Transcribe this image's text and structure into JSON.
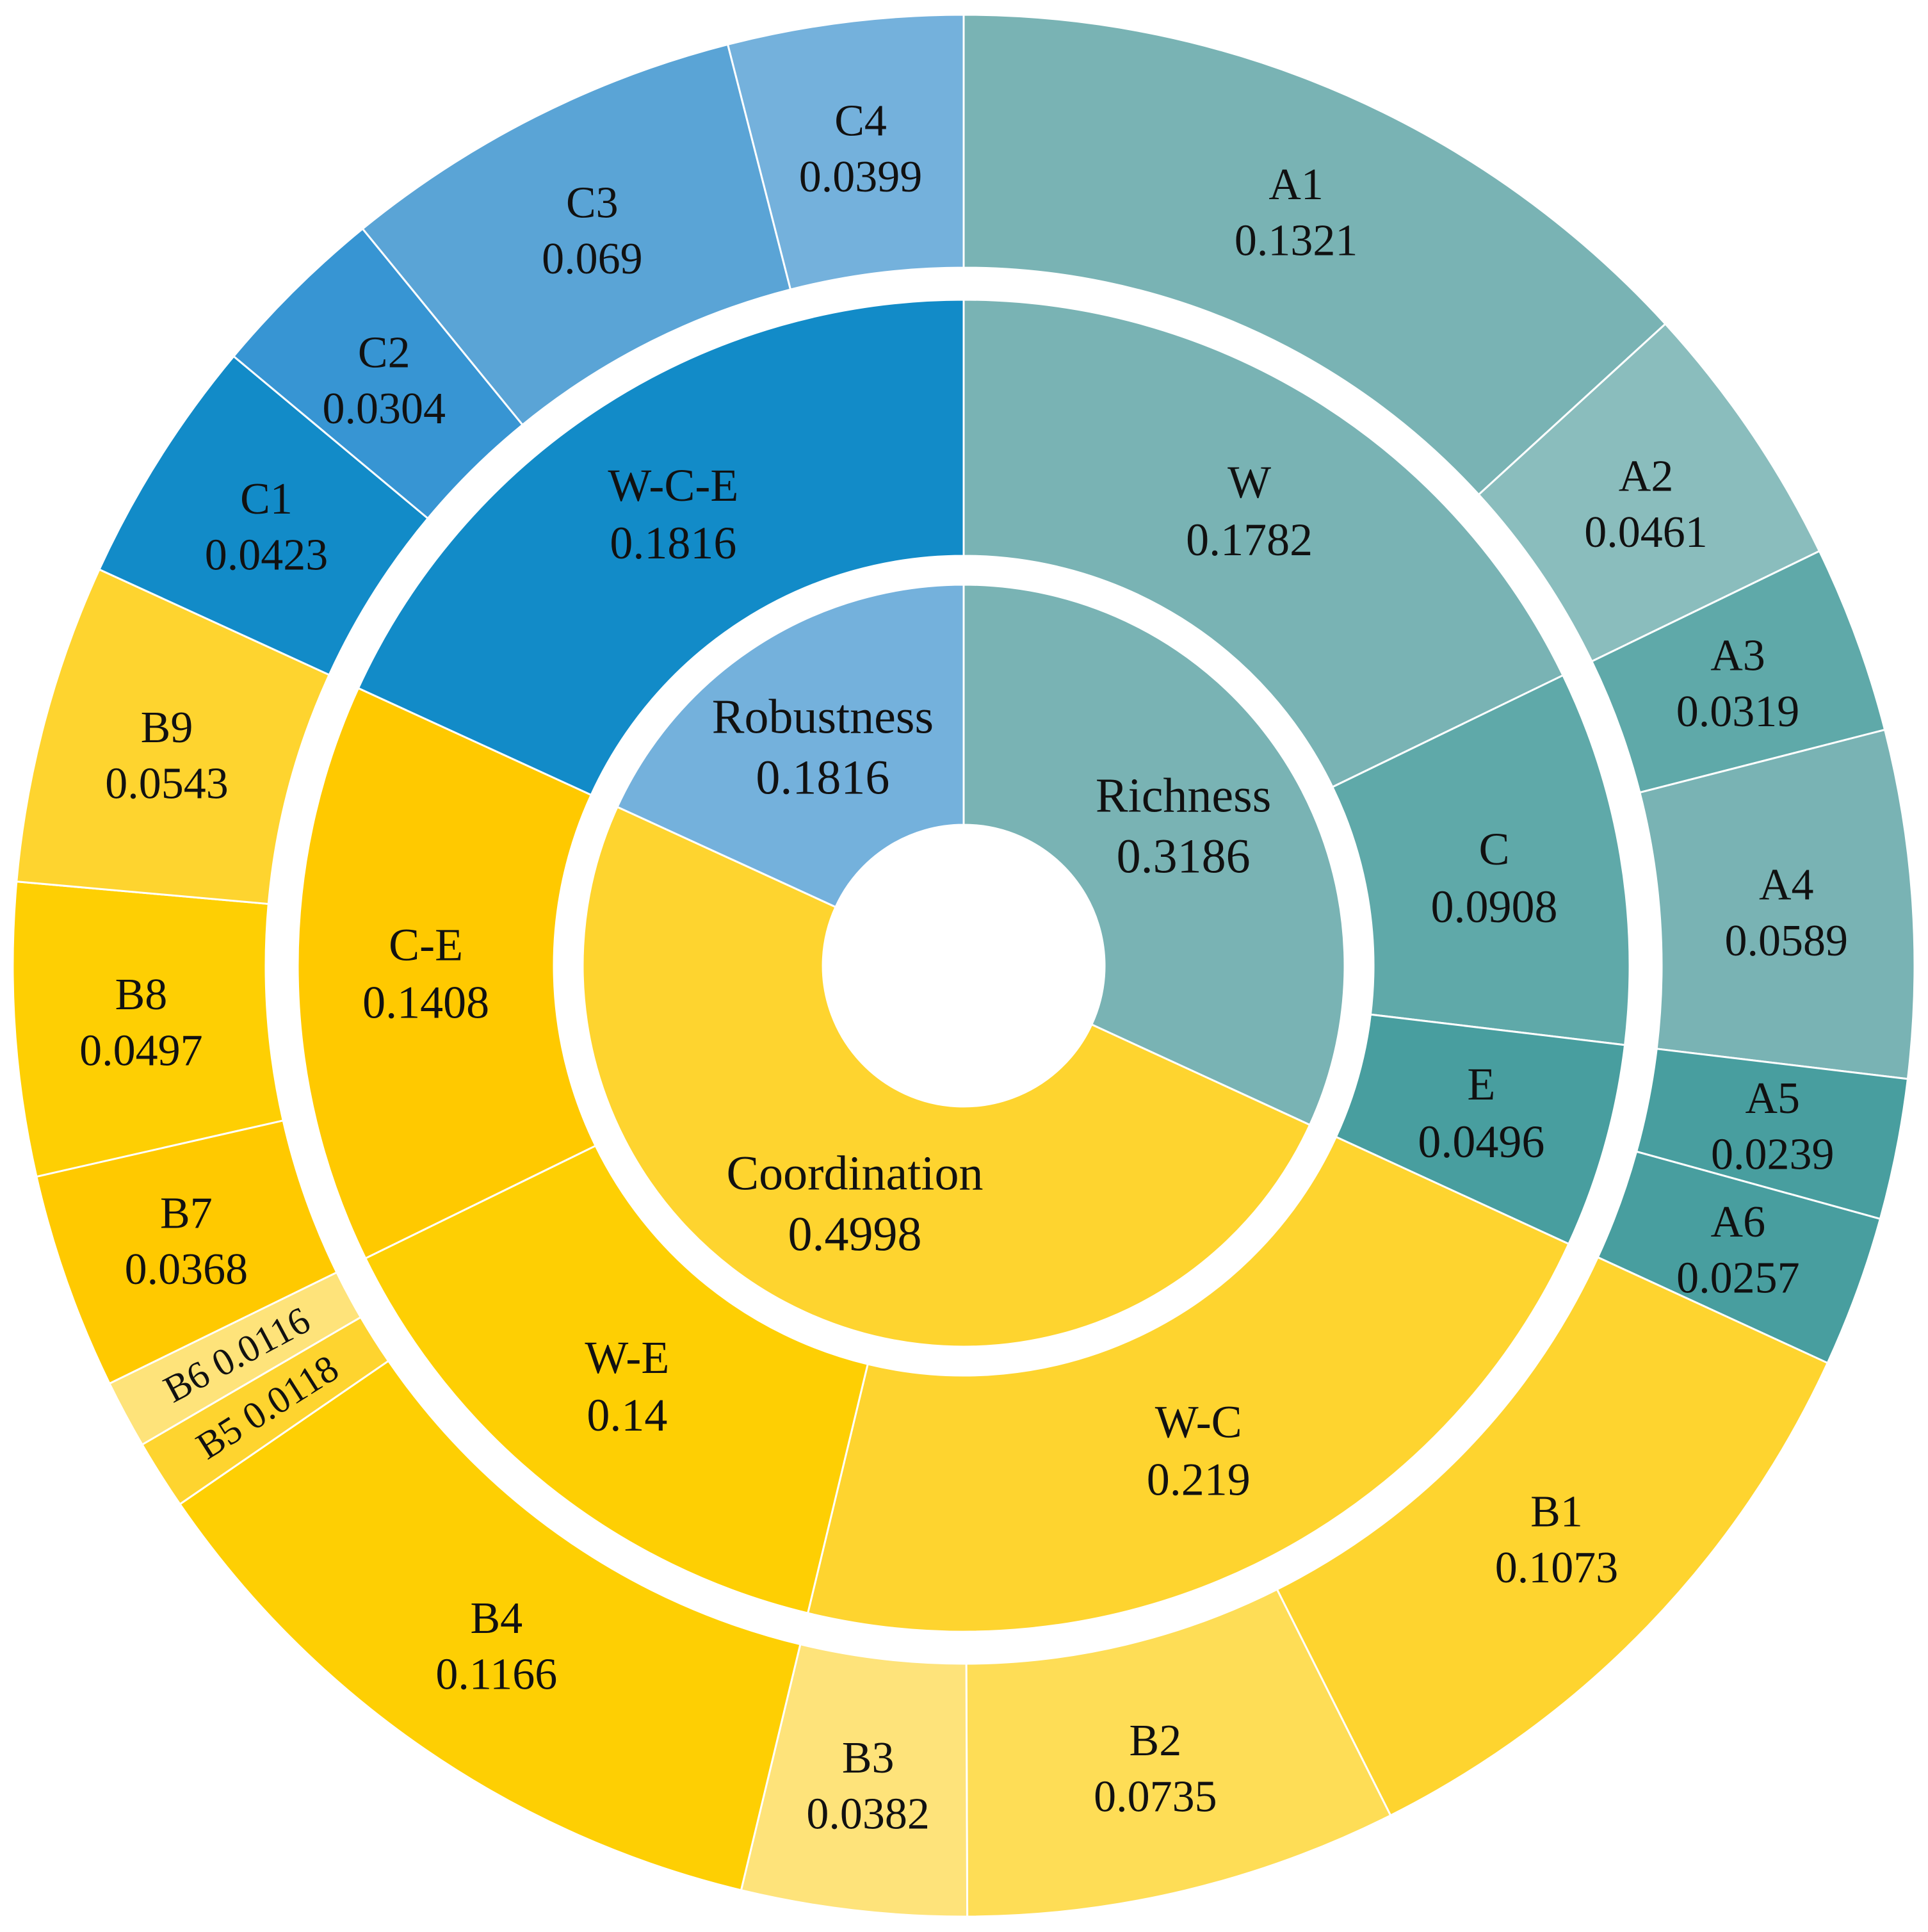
{
  "chart_data": {
    "type": "sunburst",
    "start_angle_deg": 0,
    "direction": "clockwise",
    "rings": [
      {
        "ring": "inner",
        "segments": [
          {
            "label": "Richness",
            "value": "0.3186",
            "color": "#79B3B4"
          },
          {
            "label": "Coordination",
            "value": "0.4998",
            "color": "#FED42F"
          },
          {
            "label": "Robustness",
            "value": "0.1816",
            "color": "#74B1DC"
          }
        ]
      },
      {
        "ring": "middle",
        "segments": [
          {
            "label": "W",
            "value": "0.1782",
            "color": "#79B3B4",
            "parent": "Richness"
          },
          {
            "label": "C",
            "value": "0.0908",
            "color": "#5FA9A9",
            "parent": "Richness"
          },
          {
            "label": "E",
            "value": "0.0496",
            "color": "#489E9F",
            "parent": "Richness"
          },
          {
            "label": "W-C",
            "value": "0.219",
            "color": "#FED42F",
            "parent": "Coordination"
          },
          {
            "label": "W-E",
            "value": "0.14",
            "color": "#FECF03",
            "parent": "Coordination"
          },
          {
            "label": "C-E",
            "value": "0.1408",
            "color": "#FFC900",
            "parent": "Coordination"
          },
          {
            "label": "W-C-E",
            "value": "0.1816",
            "color": "#128BC8",
            "parent": "Robustness"
          }
        ]
      },
      {
        "ring": "outer",
        "segments": [
          {
            "label": "A1",
            "value": "0.1321",
            "color": "#79B3B4"
          },
          {
            "label": "A2",
            "value": "0.0461",
            "color": "#8ABDBD"
          },
          {
            "label": "A3",
            "value": "0.0319",
            "color": "#5FA9A9"
          },
          {
            "label": "A4",
            "value": "0.0589",
            "color": "#79B3B4"
          },
          {
            "label": "A5",
            "value": "0.0239",
            "color": "#489E9F"
          },
          {
            "label": "A6",
            "value": "0.0257",
            "color": "#489E9F"
          },
          {
            "label": "B1",
            "value": "0.1073",
            "color": "#FED42F"
          },
          {
            "label": "B2",
            "value": "0.0735",
            "color": "#FEDD56"
          },
          {
            "label": "B3",
            "value": "0.0382",
            "color": "#FEE37A"
          },
          {
            "label": "B4",
            "value": "0.1166",
            "color": "#FECF03"
          },
          {
            "label": "B5",
            "value": "0.0118",
            "color": "#FED42F"
          },
          {
            "label": "B6",
            "value": "0.0116",
            "color": "#FEE37A"
          },
          {
            "label": "B7",
            "value": "0.0368",
            "color": "#FFC900"
          },
          {
            "label": "B8",
            "value": "0.0497",
            "color": "#FECF03"
          },
          {
            "label": "B9",
            "value": "0.0543",
            "color": "#FED42F"
          },
          {
            "label": "C1",
            "value": "0.0423",
            "color": "#128BC8"
          },
          {
            "label": "C2",
            "value": "0.0304",
            "color": "#3795D3"
          },
          {
            "label": "C3",
            "value": "0.069",
            "color": "#5AA4D6"
          },
          {
            "label": "C4",
            "value": "0.0399",
            "color": "#74B1DC"
          }
        ]
      }
    ]
  }
}
